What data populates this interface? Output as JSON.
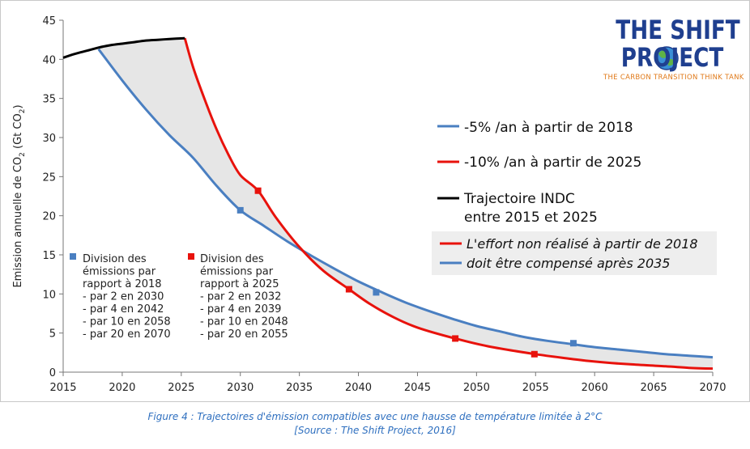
{
  "chart_data": {
    "type": "line",
    "ylabel": "Emission annuelle de CO2 (Gt CO2)",
    "xlim": [
      2015,
      2070
    ],
    "ylim": [
      0,
      45
    ],
    "xticks": [
      2015,
      2020,
      2025,
      2030,
      2035,
      2040,
      2045,
      2050,
      2055,
      2060,
      2065,
      2070
    ],
    "yticks": [
      0,
      5,
      10,
      15,
      20,
      25,
      30,
      35,
      40,
      45
    ],
    "grid": false,
    "series": [
      {
        "name": "-5% /an à partir de 2018",
        "color": "#4a7fc1",
        "x": [
          2018,
          2020,
          2022,
          2024,
          2026,
          2028,
          2030,
          2032,
          2034,
          2036,
          2038,
          2040,
          2042,
          2044,
          2046,
          2048,
          2050,
          2052,
          2054,
          2056,
          2058,
          2060,
          2062,
          2064,
          2066,
          2068,
          2070
        ],
        "y": [
          41.3,
          37.3,
          33.6,
          30.3,
          27.4,
          23.8,
          20.7,
          18.7,
          16.7,
          14.9,
          13.2,
          11.6,
          10.2,
          8.9,
          7.8,
          6.8,
          5.9,
          5.2,
          4.5,
          4.0,
          3.6,
          3.2,
          2.9,
          2.6,
          2.3,
          2.1,
          1.9
        ]
      },
      {
        "name": "-10% /an à partir de 2025",
        "color": "#e8120c",
        "x": [
          2025.3,
          2026,
          2027,
          2028,
          2029,
          2030,
          2031.5,
          2033,
          2035,
          2037,
          2039.2,
          2041,
          2043,
          2045,
          2048.2,
          2051,
          2055,
          2058,
          2060,
          2063,
          2066,
          2068,
          2070
        ],
        "y": [
          42.7,
          39.0,
          34.8,
          31.0,
          27.8,
          25.2,
          23.2,
          19.8,
          16.0,
          13.0,
          10.6,
          8.7,
          7.0,
          5.7,
          4.3,
          3.3,
          2.3,
          1.7,
          1.35,
          1.0,
          0.75,
          0.55,
          0.45
        ]
      },
      {
        "name": "Trajectoire INDC entre 2015 et 2025",
        "color": "#000000",
        "x": [
          2015,
          2016,
          2017,
          2018,
          2019,
          2020,
          2021,
          2022,
          2023,
          2024,
          2025.3
        ],
        "y": [
          40.2,
          40.7,
          41.1,
          41.5,
          41.8,
          42.0,
          42.2,
          42.4,
          42.5,
          42.6,
          42.7
        ]
      }
    ],
    "markers": [
      {
        "series": 0,
        "x": [
          2030,
          2041.5,
          2058.2
        ],
        "y": [
          20.7,
          10.2,
          3.7
        ]
      },
      {
        "series": 1,
        "x": [
          2031.5,
          2039.2,
          2048.2,
          2054.9
        ],
        "y": [
          23.2,
          10.6,
          4.3,
          2.3
        ]
      }
    ],
    "legend": [
      {
        "label": "-5% /an à partir de 2018",
        "color": "#4a7fc1"
      },
      {
        "label": "-10% /an à partir de 2025",
        "color": "#e8120c"
      },
      {
        "label": "Trajectoire INDC",
        "label2": "entre 2015 et 2025",
        "color": "#000000"
      },
      {
        "label": "L'effort non réalisé à partir de 2018",
        "label2": "doit être compensé après 2035",
        "colors": [
          "#e8120c",
          "#4a7fc1"
        ]
      }
    ],
    "annotations": {
      "blue_note": [
        "Division des",
        "émissions par",
        "rapport à 2018",
        "- par 2 en 2030",
        "- par 4 en 2042",
        "- par 10 en 2058",
        "- par 20 en 2070"
      ],
      "red_note": [
        "Division des",
        "émissions par",
        "rapport à 2025",
        "- par 2 en 2032",
        "- par 4 en 2039",
        "- par 10 en 2048",
        "- par 20 en 2055"
      ]
    },
    "fill_color": "#e6e6e6"
  },
  "logo": {
    "line1": "THE SHIFT",
    "line2": "PROJECT",
    "tagline": "THE CARBON TRANSITION THINK TANK"
  },
  "caption": {
    "line1": "Figure 4 : Trajectoires d'émission compatibles avec une hausse de température limitée à 2°C",
    "line2": "[Source : The Shift Project, 2016]"
  }
}
